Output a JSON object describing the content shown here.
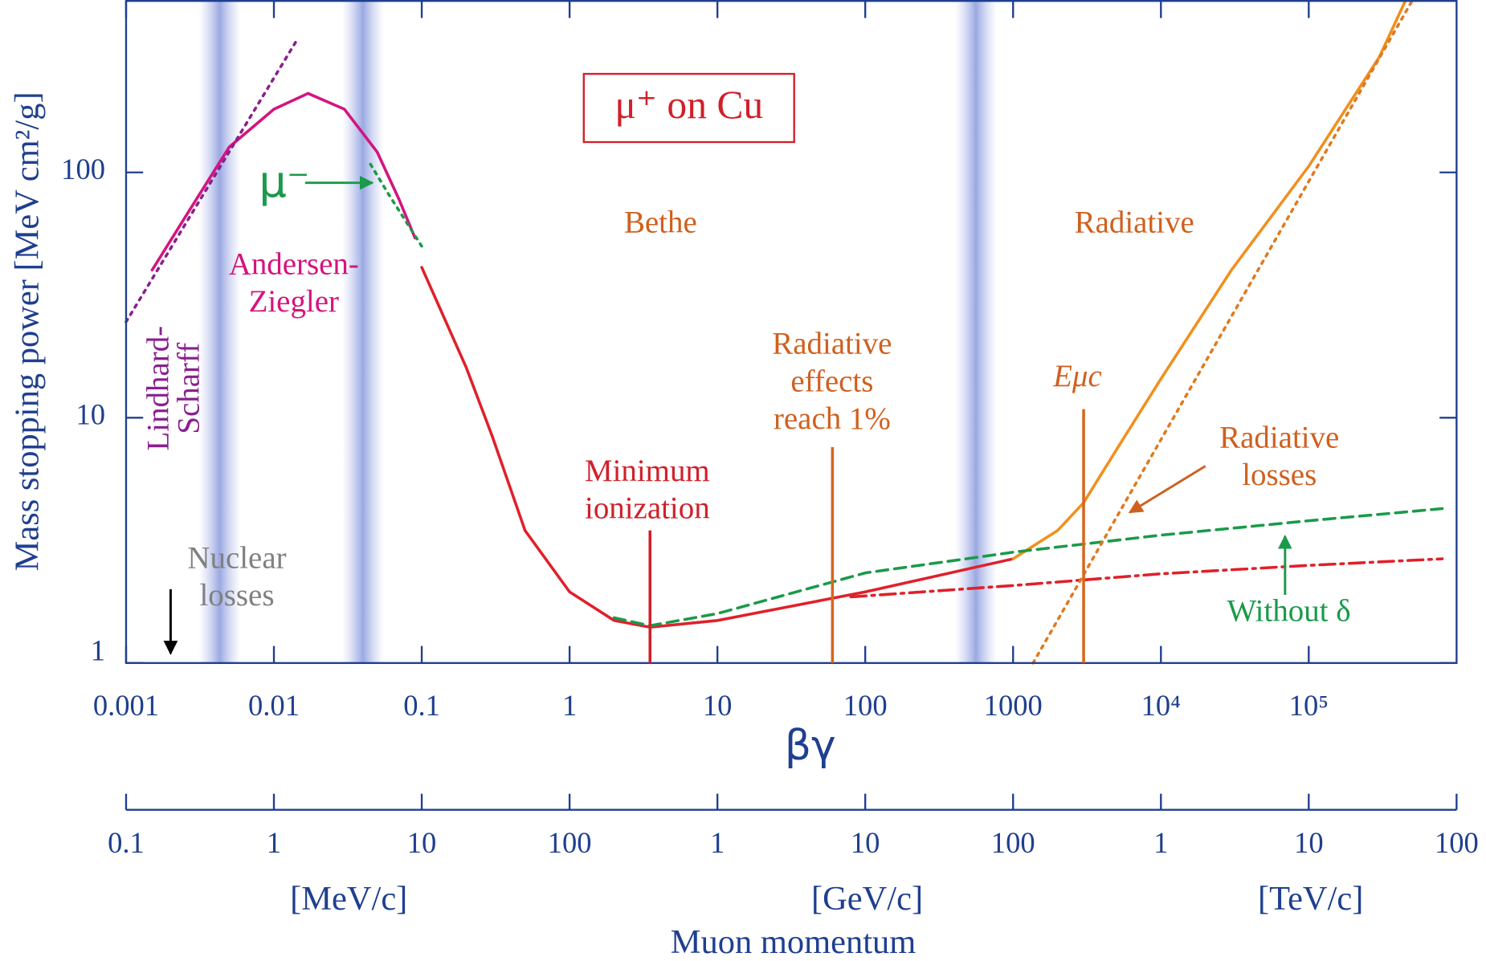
{
  "chart_data": {
    "type": "line",
    "title": "μ⁺ on Cu",
    "xlabel": "βγ",
    "ylabel": "Mass stopping power [MeV cm²/g]",
    "xscale": "log",
    "yscale": "log",
    "xlim": [
      0.001,
      1000000
    ],
    "ylim": [
      1,
      500
    ],
    "xticks": [
      0.001,
      0.01,
      0.1,
      1,
      10,
      100,
      1000,
      {
        "value": 10000,
        "label": "10⁴"
      },
      {
        "value": 100000,
        "label": "10⁵"
      }
    ],
    "yticks": [
      1,
      10,
      100
    ],
    "x2label": "Muon momentum",
    "x2lim": [
      0.1,
      100000000
    ],
    "x2ticks": [
      0.1,
      1,
      10,
      100,
      {
        "value": 1000,
        "label": "1"
      },
      {
        "value": 10000,
        "label": "10"
      },
      {
        "value": 100000,
        "label": "100"
      },
      {
        "value": 1000000,
        "label": "1"
      },
      {
        "value": 10000000,
        "label": "10"
      },
      {
        "value": 100000000,
        "label": "100"
      }
    ],
    "x2units": [
      "[MeV/c]",
      "[GeV/c]",
      "[TeV/c]"
    ],
    "bands": [
      0.0043,
      0.04,
      560
    ],
    "series": [
      {
        "color": "#d4147f",
        "style": "solid",
        "x": [
          0.0015,
          0.003,
          0.005,
          0.01,
          0.017,
          0.03,
          0.05,
          0.07,
          0.09
        ],
        "values": [
          40,
          78,
          127,
          181,
          210,
          181,
          121,
          78,
          54
        ]
      },
      {
        "color": "#8a1f8f",
        "style": "dotted",
        "x": [
          0.001,
          0.014
        ],
        "values": [
          24.6,
          339
        ]
      },
      {
        "color": "#1a9a4a",
        "style": "dotted",
        "x": [
          0.045,
          0.06,
          0.1
        ],
        "values": [
          108,
          81,
          50
        ]
      },
      {
        "color": "#e0202a",
        "style": "solid",
        "x": [
          0.1,
          0.2,
          0.3,
          0.5,
          1,
          2,
          3.5,
          10,
          100,
          1000
        ],
        "values": [
          41,
          16,
          8.4,
          3.47,
          1.95,
          1.49,
          1.4,
          1.49,
          1.95,
          2.66
        ]
      },
      {
        "color": "#f0901e",
        "style": "solid",
        "x": [
          1000,
          2000,
          3000,
          5000,
          10000,
          30000,
          100000,
          300000,
          450000
        ],
        "values": [
          2.66,
          3.47,
          4.5,
          7.4,
          14.4,
          40,
          106,
          295,
          500
        ]
      },
      {
        "color": "#1a9a4a",
        "style": "dashed",
        "x": [
          2,
          3.5,
          10,
          100,
          1000,
          10000,
          100000,
          800000
        ],
        "values": [
          1.53,
          1.42,
          1.59,
          2.33,
          2.83,
          3.32,
          3.8,
          4.26
        ]
      },
      {
        "color": "#e0202a",
        "style": "dashdot",
        "x": [
          80,
          1000,
          10000,
          100000,
          800000
        ],
        "values": [
          1.86,
          2.07,
          2.31,
          2.5,
          2.66
        ]
      },
      {
        "color": "#e07a20",
        "style": "dotted",
        "x": [
          1365,
          500000
        ],
        "values": [
          1,
          500
        ]
      }
    ],
    "markers": [
      {
        "x": 3.5,
        "color": "#d0202a"
      },
      {
        "x": 60,
        "color": "#d8661e"
      },
      {
        "x": 3000,
        "color": "#d8661e"
      }
    ],
    "annotations": [
      {
        "text": [
          "Bethe"
        ],
        "color": "#d0601e"
      },
      {
        "text": [
          "Radiative"
        ],
        "color": "#d0601e"
      },
      {
        "text": [
          "Andersen-",
          "Ziegler"
        ],
        "color": "#d4147f"
      },
      {
        "text": [
          "Lindhard-",
          "Scharff"
        ],
        "color": "#8a1f8f"
      },
      {
        "text": [
          "Nuclear",
          "losses"
        ],
        "color": "#808080"
      },
      {
        "text": [
          "Minimum",
          "ionization"
        ],
        "color": "#d0202a"
      },
      {
        "text": [
          "Radiative",
          "effects",
          "reach 1%"
        ],
        "color": "#d0601e"
      },
      {
        "text": [
          "Eμc"
        ],
        "color": "#d0601e"
      },
      {
        "text": [
          "Radiative",
          "losses"
        ],
        "color": "#d0601e"
      },
      {
        "text": [
          "Without δ"
        ],
        "color": "#1a9a4a"
      },
      {
        "text": [
          "μ⁻"
        ],
        "color": "#1a9a4a"
      }
    ]
  }
}
